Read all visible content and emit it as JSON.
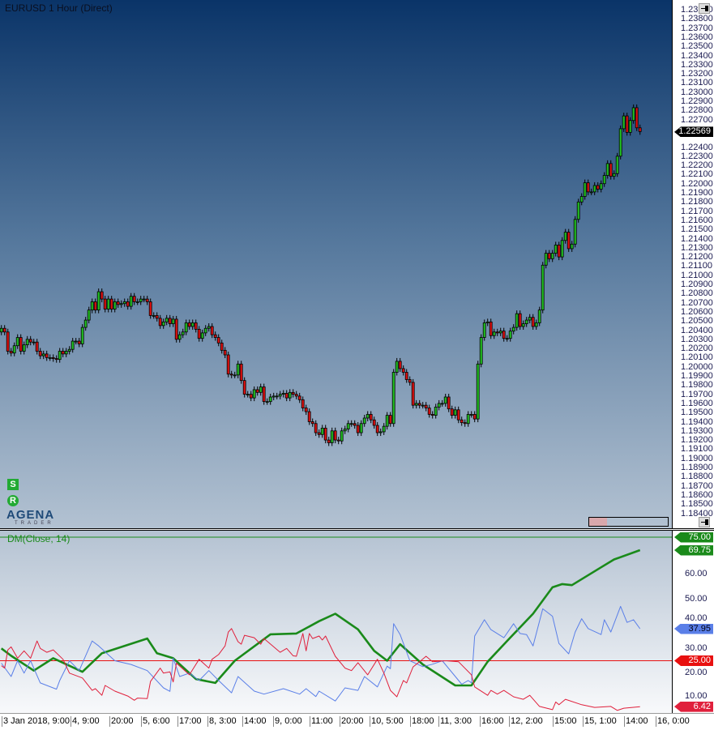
{
  "window": {
    "title": "EURUSD 1 Hour (Direct)"
  },
  "indicator": {
    "label": "DM(Close, 14)"
  },
  "logo": {
    "text": "AGENA",
    "subtext": "TRADER",
    "badge_s": "S",
    "badge_r": "R"
  },
  "icons": {
    "pin_top": "pin-icon",
    "pin_bottom": "pin-icon"
  },
  "colors": {
    "bull": "#22c022",
    "bear": "#e01010",
    "adx": "#1a8a1a",
    "plus_di": "#5a7fe8",
    "minus_di": "#e0203c",
    "level_high": "#1a8a1a",
    "level_low": "#e81010"
  },
  "chart_data": [
    {
      "type": "candlestick",
      "symbol": "EURUSD",
      "timeframe": "1 Hour",
      "ylim": [
        1.184,
        1.239
      ],
      "y_tick_step": 0.001,
      "last_price": "1.22569",
      "first_open": 1.2038,
      "closes": [
        1.2042,
        1.2038,
        1.2017,
        1.2015,
        1.2023,
        1.2032,
        1.2017,
        1.2024,
        1.203,
        1.2027,
        1.2027,
        1.2017,
        1.2012,
        1.2014,
        1.201,
        1.201,
        1.2009,
        1.2008,
        1.2017,
        1.2014,
        1.2017,
        1.2019,
        1.2028,
        1.2028,
        1.2025,
        1.2043,
        1.2051,
        1.2062,
        1.2071,
        1.2062,
        1.2082,
        1.2074,
        1.2063,
        1.2074,
        1.2063,
        1.2071,
        1.2068,
        1.2069,
        1.2071,
        1.2066,
        1.2077,
        1.2071,
        1.2071,
        1.2074,
        1.2074,
        1.2071,
        1.2056,
        1.2056,
        1.2053,
        1.2045,
        1.2049,
        1.2053,
        1.2047,
        1.2052,
        1.203,
        1.2035,
        1.2038,
        1.2048,
        1.2044,
        1.2048,
        1.2041,
        1.2031,
        1.2037,
        1.2042,
        1.2044,
        1.2035,
        1.2032,
        1.2026,
        1.2018,
        1.2013,
        1.1992,
        1.1991,
        1.1991,
        1.2003,
        1.1985,
        1.197,
        1.197,
        1.1966,
        1.1975,
        1.1972,
        1.1978,
        1.1962,
        1.1962,
        1.1967,
        1.1968,
        1.1968,
        1.197,
        1.1971,
        1.1966,
        1.1972,
        1.197,
        1.1968,
        1.1964,
        1.1955,
        1.1951,
        1.194,
        1.1938,
        1.1928,
        1.1926,
        1.1933,
        1.192,
        1.1917,
        1.193,
        1.192,
        1.1919,
        1.193,
        1.1932,
        1.1938,
        1.1938,
        1.1936,
        1.1928,
        1.1938,
        1.1944,
        1.1948,
        1.1942,
        1.1936,
        1.1928,
        1.1929,
        1.1935,
        1.1947,
        1.1938,
        1.1994,
        1.2006,
        1.1998,
        1.1994,
        1.1986,
        1.1983,
        1.1958,
        1.196,
        1.1958,
        1.1958,
        1.1955,
        1.1948,
        1.1947,
        1.1956,
        1.196,
        1.196,
        1.1967,
        1.1954,
        1.1947,
        1.1953,
        1.1942,
        1.1939,
        1.1938,
        1.1948,
        1.1948,
        1.1943,
        1.2003,
        1.2032,
        1.2048,
        1.2049,
        1.2034,
        1.2038,
        1.2037,
        1.2039,
        1.2031,
        1.2031,
        1.2039,
        1.2043,
        1.2058,
        1.2044,
        1.2047,
        1.2051,
        1.2054,
        1.2044,
        1.2048,
        1.2062,
        1.2111,
        1.2124,
        1.2118,
        1.2124,
        1.2133,
        1.212,
        1.2138,
        1.2147,
        1.2129,
        1.2134,
        1.2161,
        1.218,
        1.2186,
        1.2201,
        1.2191,
        1.2191,
        1.2198,
        1.2194,
        1.22,
        1.2209,
        1.2222,
        1.2208,
        1.2211,
        1.223,
        1.226,
        1.2274,
        1.2256,
        1.2269,
        1.2283,
        1.2261,
        1.22569
      ],
      "x_tick_labels": [
        "3 Jan 2018, 9:00",
        "4, 9:00",
        "20:00",
        "5, 6:00",
        "17:00",
        "8, 3:00",
        "14:00",
        "9, 0:00",
        "11:00",
        "20:00",
        "10, 5:00",
        "18:00",
        "11, 3:00",
        "16:00",
        "12, 2:00",
        "15:00",
        "15, 1:00",
        "14:00",
        "16, 0:00"
      ]
    },
    {
      "type": "line",
      "title": "DM(Close, 14)",
      "ylim": [
        0,
        75
      ],
      "y_ticks": [
        "60.00",
        "50.00",
        "40.00",
        "30.00",
        "20.00",
        "10.00"
      ],
      "levels": [
        {
          "value": 75,
          "label": "75.00",
          "color": "#1a8a1a"
        },
        {
          "value": 25,
          "label": "25.00",
          "color": "#e81010"
        }
      ],
      "series": [
        {
          "key": "adx",
          "color": "#1a8a1a",
          "last_label": "69.75",
          "points": [
            [
              0,
              30
            ],
            [
              3,
              27
            ],
            [
              10,
              21
            ],
            [
              16,
              26
            ],
            [
              25,
              20.5
            ],
            [
              31,
              28
            ],
            [
              45,
              34
            ],
            [
              48,
              28
            ],
            [
              53,
              26
            ],
            [
              60,
              17.6
            ],
            [
              66,
              16
            ],
            [
              72,
              25
            ],
            [
              83,
              35.7
            ],
            [
              91,
              36
            ],
            [
              98,
              41
            ],
            [
              103,
              44
            ],
            [
              110,
              37.7
            ],
            [
              115,
              29
            ],
            [
              119,
              25
            ],
            [
              123,
              31.7
            ],
            [
              130,
              23.5
            ],
            [
              140,
              15
            ],
            [
              145,
              15
            ],
            [
              150,
              24.6
            ],
            [
              156,
              33
            ],
            [
              164,
              44
            ],
            [
              170,
              54.7
            ],
            [
              173,
              56
            ],
            [
              176,
              55.6
            ],
            [
              185,
              62.8
            ],
            [
              189,
              66
            ],
            [
              197,
              69.75
            ]
          ]
        },
        {
          "key": "plus_di",
          "color": "#5a7fe8",
          "last_label": "37.95",
          "points": [
            [
              0,
              24
            ],
            [
              3,
              18.6
            ],
            [
              5,
              25
            ],
            [
              7,
              20
            ],
            [
              9,
              25
            ],
            [
              12,
              16
            ],
            [
              17,
              13.5
            ],
            [
              18,
              17
            ],
            [
              21,
              25
            ],
            [
              24,
              21
            ],
            [
              28,
              33
            ],
            [
              30,
              31
            ],
            [
              35,
              25
            ],
            [
              40,
              23.5
            ],
            [
              45,
              21
            ],
            [
              50,
              14
            ],
            [
              52,
              12.6
            ],
            [
              53,
              26
            ],
            [
              55,
              18.6
            ],
            [
              58,
              20
            ],
            [
              61,
              17
            ],
            [
              64,
              21
            ],
            [
              67,
              17
            ],
            [
              71,
              12
            ],
            [
              73,
              18.6
            ],
            [
              78,
              12.7
            ],
            [
              81,
              11.5
            ],
            [
              87,
              13.7
            ],
            [
              92,
              11.5
            ],
            [
              94,
              13.7
            ],
            [
              97,
              10.5
            ],
            [
              98,
              12.7
            ],
            [
              103,
              8.7
            ],
            [
              106,
              14
            ],
            [
              110,
              13
            ],
            [
              112,
              18.6
            ],
            [
              116,
              14.4
            ],
            [
              119,
              22.8
            ],
            [
              120,
              21.8
            ],
            [
              121,
              40
            ],
            [
              123,
              35.6
            ],
            [
              126,
              25
            ],
            [
              130,
              22.6
            ],
            [
              133,
              23.6
            ],
            [
              136,
              25
            ],
            [
              142,
              15.5
            ],
            [
              144,
              17
            ],
            [
              145,
              16
            ],
            [
              146,
              35
            ],
            [
              149,
              41.6
            ],
            [
              151,
              37.6
            ],
            [
              155,
              34.3
            ],
            [
              158,
              40
            ],
            [
              160,
              36
            ],
            [
              162,
              35.6
            ],
            [
              164,
              31
            ],
            [
              167,
              46
            ],
            [
              170,
              43
            ],
            [
              172,
              32
            ],
            [
              175,
              27.8
            ],
            [
              177,
              36.6
            ],
            [
              179,
              42
            ],
            [
              181,
              38
            ],
            [
              185,
              35.6
            ],
            [
              186,
              41.6
            ],
            [
              188,
              36.6
            ],
            [
              191,
              47
            ],
            [
              193,
              40.5
            ],
            [
              195,
              41.6
            ],
            [
              197,
              37.95
            ]
          ]
        },
        {
          "key": "minus_di",
          "color": "#e0203c",
          "last_label": "6.42",
          "points": [
            [
              0,
              23
            ],
            [
              1,
              22
            ],
            [
              2,
              29.4
            ],
            [
              3,
              30.6
            ],
            [
              5,
              26
            ],
            [
              7,
              29
            ],
            [
              9,
              26
            ],
            [
              11,
              33
            ],
            [
              12,
              30
            ],
            [
              14,
              28.4
            ],
            [
              16,
              29.4
            ],
            [
              19,
              25.6
            ],
            [
              21,
              20
            ],
            [
              25,
              18
            ],
            [
              28,
              13
            ],
            [
              29,
              13.7
            ],
            [
              31,
              11
            ],
            [
              32,
              15
            ],
            [
              35,
              12.7
            ],
            [
              39,
              10.7
            ],
            [
              41,
              9
            ],
            [
              42,
              9.9
            ],
            [
              45,
              9.7
            ],
            [
              46,
              16.6
            ],
            [
              49,
              22
            ],
            [
              50,
              20
            ],
            [
              52,
              20.5
            ],
            [
              53,
              16.4
            ],
            [
              54,
              24
            ],
            [
              58,
              19.3
            ],
            [
              61,
              25.6
            ],
            [
              64,
              22
            ],
            [
              65,
              25.6
            ],
            [
              67,
              27.5
            ],
            [
              69,
              31
            ],
            [
              70,
              36.6
            ],
            [
              71,
              38
            ],
            [
              73,
              32.7
            ],
            [
              74,
              31.7
            ],
            [
              75,
              35.3
            ],
            [
              78,
              34.3
            ],
            [
              80,
              31.7
            ],
            [
              81,
              34
            ],
            [
              86,
              28.4
            ],
            [
              88,
              30
            ],
            [
              90,
              27
            ],
            [
              91,
              26.8
            ],
            [
              93,
              36
            ],
            [
              94,
              29
            ],
            [
              95,
              36
            ],
            [
              96,
              34
            ],
            [
              98,
              35
            ],
            [
              99,
              33.4
            ],
            [
              100,
              35
            ],
            [
              103,
              26.8
            ],
            [
              106,
              22
            ],
            [
              108,
              21
            ],
            [
              110,
              24.2
            ],
            [
              113,
              19.3
            ],
            [
              116,
              25.6
            ],
            [
              118,
              20
            ],
            [
              120,
              13
            ],
            [
              122,
              10.4
            ],
            [
              124,
              17
            ],
            [
              125,
              16
            ],
            [
              127,
              22.5
            ],
            [
              129,
              24.6
            ],
            [
              131,
              26.8
            ],
            [
              133,
              24.6
            ],
            [
              137,
              25
            ],
            [
              141,
              24.6
            ],
            [
              145,
              19.3
            ],
            [
              146,
              14.4
            ],
            [
              150,
              11
            ],
            [
              151,
              13
            ],
            [
              153,
              11.5
            ],
            [
              155,
              13
            ],
            [
              158,
              10.4
            ],
            [
              161,
              9.4
            ],
            [
              163,
              11
            ],
            [
              166,
              6.5
            ],
            [
              170,
              5.2
            ],
            [
              171,
              8.3
            ],
            [
              172,
              7.2
            ],
            [
              174,
              9.4
            ],
            [
              179,
              7.2
            ],
            [
              183,
              6.1
            ],
            [
              188,
              6.5
            ],
            [
              190,
              4.9
            ],
            [
              192,
              5.8
            ],
            [
              197,
              6.42
            ]
          ]
        }
      ]
    }
  ]
}
